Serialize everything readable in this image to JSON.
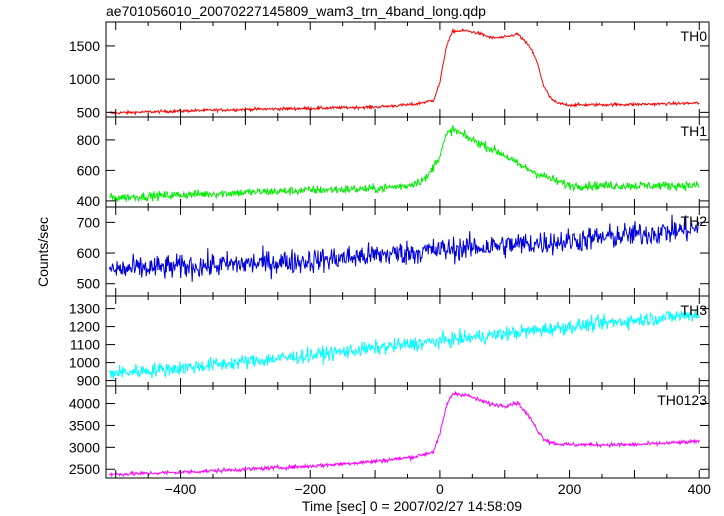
{
  "chart_data": {
    "type": "line",
    "title": "ae701056010_20070227145809_wam3_trn_4band_long.qdp",
    "xlabel": "Time [sec] 0 = 2007/02/27 14:58:09",
    "ylabel": "Counts/sec",
    "xlim": [
      -515,
      415
    ],
    "x_ticks": [
      -400,
      -200,
      0,
      200,
      400
    ],
    "grid": false,
    "panels": [
      {
        "name": "TH0",
        "color": "#ff0000",
        "ylim": [
          430,
          1860
        ],
        "y_ticks": [
          500,
          1000,
          1500
        ],
        "noise": 22,
        "x": [
          -510,
          -400,
          -300,
          -200,
          -100,
          -40,
          -10,
          0,
          10,
          20,
          40,
          60,
          80,
          100,
          120,
          140,
          150,
          160,
          170,
          180,
          200,
          300,
          400
        ],
        "y": [
          490,
          520,
          545,
          560,
          580,
          620,
          680,
          950,
          1500,
          1720,
          1730,
          1690,
          1620,
          1630,
          1680,
          1470,
          1250,
          900,
          720,
          640,
          610,
          620,
          640
        ]
      },
      {
        "name": "TH1",
        "color": "#00ee00",
        "ylim": [
          360,
          950
        ],
        "y_ticks": [
          400,
          600,
          800
        ],
        "noise": 28,
        "x": [
          -510,
          -400,
          -300,
          -200,
          -100,
          -50,
          -20,
          0,
          10,
          20,
          40,
          60,
          80,
          100,
          120,
          150,
          180,
          200,
          300,
          400
        ],
        "y": [
          420,
          440,
          455,
          470,
          480,
          500,
          550,
          700,
          830,
          870,
          820,
          780,
          740,
          700,
          640,
          580,
          530,
          500,
          500,
          500
        ]
      },
      {
        "name": "TH2",
        "color": "#0000dd",
        "ylim": [
          460,
          750
        ],
        "y_ticks": [
          500,
          600,
          700
        ],
        "noise": 40,
        "x": [
          -510,
          -400,
          -200,
          0,
          200,
          400
        ],
        "y": [
          545,
          555,
          575,
          610,
          640,
          680
        ]
      },
      {
        "name": "TH3",
        "color": "#00ffff",
        "ylim": [
          870,
          1370
        ],
        "y_ticks": [
          900,
          1000,
          1100,
          1200,
          1300
        ],
        "noise": 40,
        "x": [
          -510,
          -400,
          -200,
          0,
          200,
          400
        ],
        "y": [
          940,
          970,
          1040,
          1120,
          1200,
          1270
        ]
      },
      {
        "name": "TH0123",
        "color": "#ff00ff",
        "ylim": [
          2300,
          4400
        ],
        "y_ticks": [
          2500,
          3000,
          3500,
          4000
        ],
        "noise": 45,
        "x": [
          -510,
          -400,
          -300,
          -200,
          -100,
          -40,
          -10,
          0,
          10,
          20,
          40,
          60,
          80,
          100,
          120,
          140,
          150,
          160,
          170,
          180,
          200,
          300,
          400
        ],
        "y": [
          2380,
          2430,
          2500,
          2570,
          2680,
          2780,
          2900,
          3300,
          3950,
          4230,
          4200,
          4080,
          3980,
          3950,
          4020,
          3650,
          3400,
          3200,
          3120,
          3080,
          3060,
          3060,
          3130
        ]
      }
    ]
  }
}
